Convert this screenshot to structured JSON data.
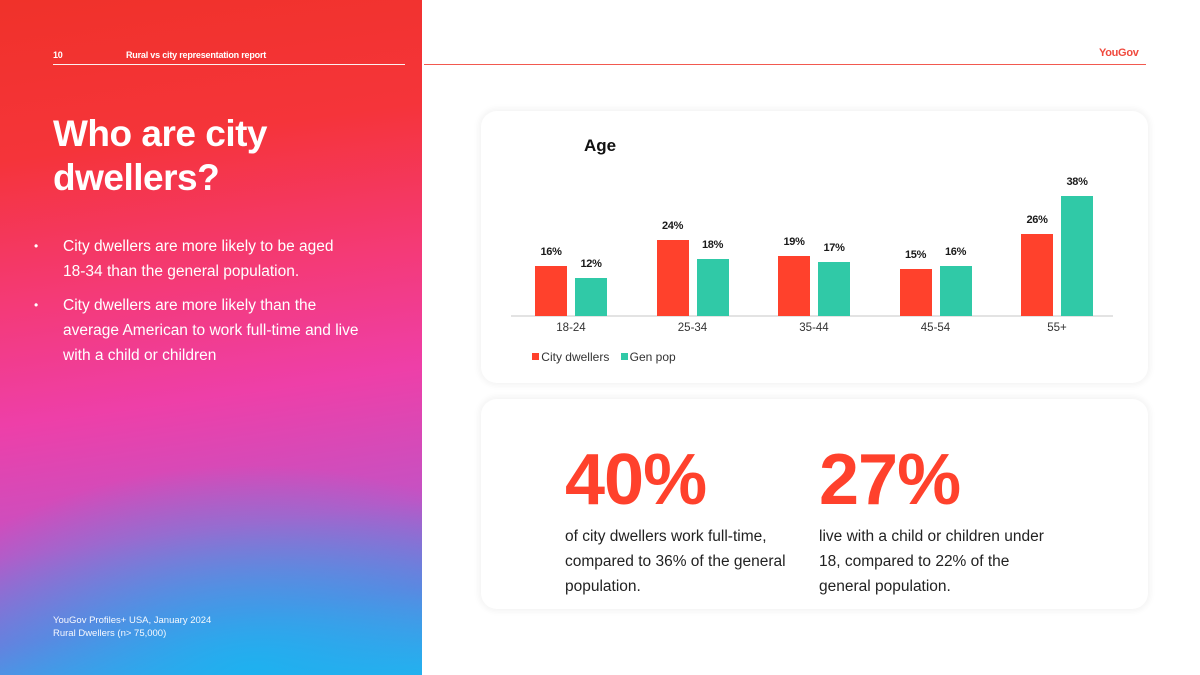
{
  "header": {
    "page_number": "10",
    "report_title": "Rural vs city representation report",
    "brand": "YouGov"
  },
  "left": {
    "title": "Who are city dwellers?",
    "bullets": [
      "City dwellers are more likely to be aged 18-34 than the general population.",
      "City dwellers are more likely than the average American to work full-time and live with a child or children"
    ],
    "source_line1": "YouGov Profiles+ USA, January 2024",
    "source_line2": "Rural Dwellers (n> 75,000)"
  },
  "colors": {
    "city": "#ff412c",
    "gen": "#30c9a7",
    "brand_red": "#f0493d"
  },
  "chart_data": {
    "type": "bar",
    "title": "Age",
    "categories": [
      "18-24",
      "25-34",
      "35-44",
      "45-54",
      "55+"
    ],
    "series": [
      {
        "name": "City dwellers",
        "values": [
          16,
          24,
          19,
          15,
          26
        ]
      },
      {
        "name": "Gen pop",
        "values": [
          12,
          18,
          17,
          16,
          38
        ]
      }
    ],
    "value_labels": {
      "City dwellers": [
        "16%",
        "24%",
        "19%",
        "15%",
        "26%"
      ],
      "Gen pop": [
        "12%",
        "18%",
        "17%",
        "16%",
        "38%"
      ]
    },
    "xlabel": "",
    "ylabel": "",
    "grid": false,
    "legend_position": "bottom",
    "ylim": [
      0,
      40
    ]
  },
  "stats": [
    {
      "value": "40%",
      "description": "of city dwellers work full-time, compared to 36% of the general population."
    },
    {
      "value": "27%",
      "description": "live with a child or children under 18, compared to 22% of the general population."
    }
  ]
}
